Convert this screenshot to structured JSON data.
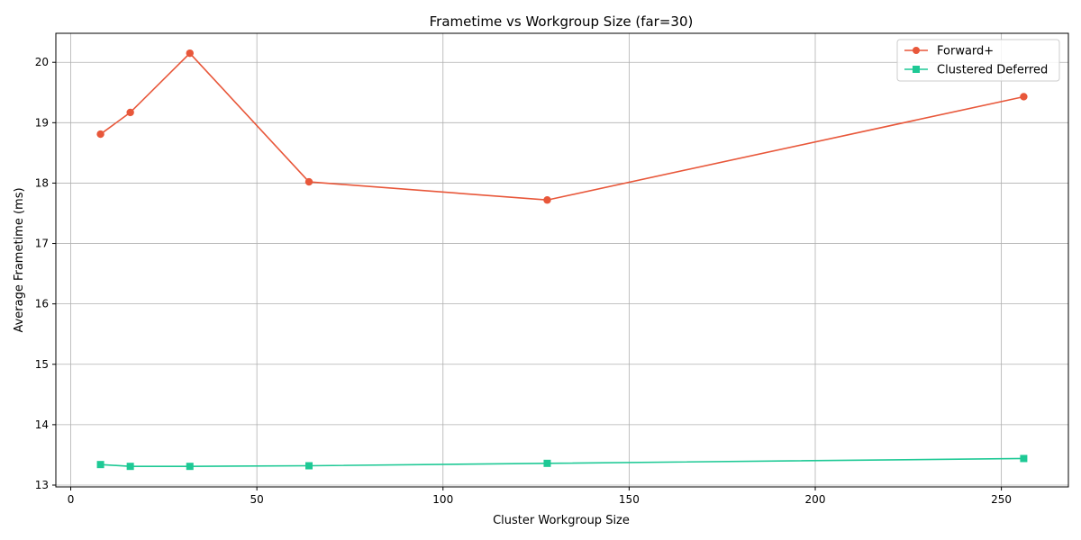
{
  "chart_data": {
    "type": "line",
    "title": "Frametime vs Workgroup Size (far=30)",
    "xlabel": "Cluster Workgroup Size",
    "ylabel": "Average Frametime (ms)",
    "xlim": [
      -4,
      268
    ],
    "ylim": [
      12.97,
      20.48
    ],
    "xticks": [
      0,
      50,
      100,
      150,
      200,
      250
    ],
    "yticks": [
      13,
      14,
      15,
      16,
      17,
      18,
      19,
      20
    ],
    "grid": true,
    "legend_position": "top-right",
    "x": [
      8,
      16,
      32,
      64,
      128,
      256
    ],
    "series": [
      {
        "name": "Forward+",
        "color": "#e8573a",
        "marker": "circle",
        "values": [
          18.81,
          19.17,
          20.15,
          18.02,
          17.72,
          19.43
        ]
      },
      {
        "name": "Clustered Deferred",
        "color": "#1ec995",
        "marker": "square",
        "values": [
          13.34,
          13.31,
          13.31,
          13.32,
          13.36,
          13.44
        ]
      }
    ]
  }
}
